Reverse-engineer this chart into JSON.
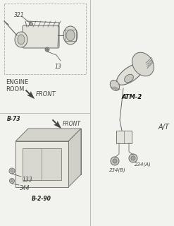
{
  "bg_color": "#f2f2ee",
  "line_color": "#aaaaaa",
  "dark_line": "#666666",
  "text_color": "#444444",
  "labels": {
    "engine_room": "ENGINE\nROOM",
    "front1": "FRONT",
    "front2": "FRONT",
    "b73": "B-73",
    "b290": "B-2-90",
    "atm2": "ATM-2",
    "at": "A/T",
    "num321": "321",
    "num13": "13",
    "num133": "133",
    "num344": "344",
    "num234a": "234(A)",
    "num234b": "234(B)"
  }
}
